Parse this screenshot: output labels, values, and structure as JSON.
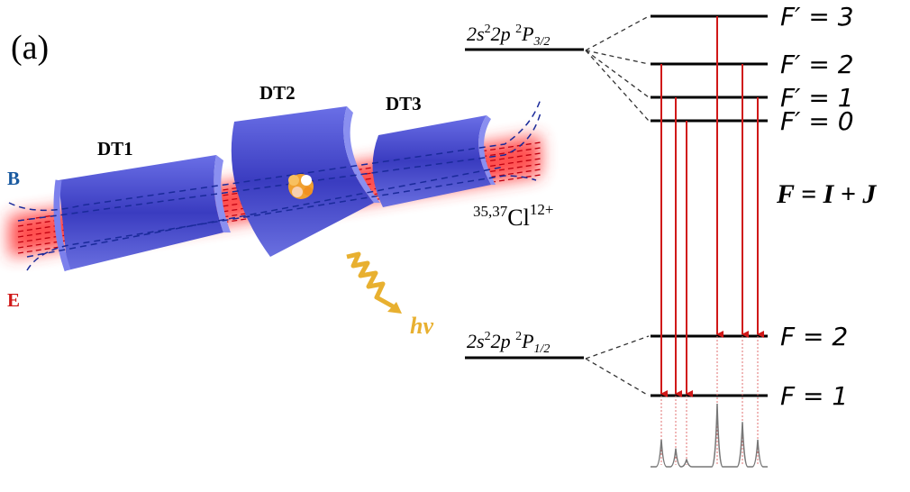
{
  "panel_label": "(a)",
  "drift_tubes": [
    "DT1",
    "DT2",
    "DT3"
  ],
  "field_labels": {
    "B": "B",
    "E": "E"
  },
  "ion_label": {
    "mass": "35,37",
    "element": "Cl",
    "charge": "12+"
  },
  "photon_label": "hν",
  "upper_state": {
    "config": "2s",
    "sup1": "2",
    "mid": "2p ",
    "sup2": "2",
    "term": "P",
    "sub": "3/2"
  },
  "lower_state": {
    "config": "2s",
    "sup1": "2",
    "mid": "2p ",
    "sup2": "2",
    "term": "P",
    "sub": "1/2"
  },
  "upper_levels": [
    {
      "id": "Fp3",
      "label": "F′ = 3"
    },
    {
      "id": "Fp2",
      "label": "F′ = 2"
    },
    {
      "id": "Fp1",
      "label": "F′ = 1"
    },
    {
      "id": "Fp0",
      "label": "F′ = 0"
    }
  ],
  "lower_levels": [
    {
      "id": "F2",
      "label": "F = 2"
    },
    {
      "id": "F1",
      "label": "F = 1"
    }
  ],
  "equation": "F = I + J",
  "transitions": [
    {
      "from": "Fp2",
      "to": "F1",
      "relative_intensity": 0.43
    },
    {
      "from": "Fp1",
      "to": "F1",
      "relative_intensity": 0.29
    },
    {
      "from": "Fp0",
      "to": "F1",
      "relative_intensity": 0.12
    },
    {
      "from": "Fp3",
      "to": "F2",
      "relative_intensity": 1.0
    },
    {
      "from": "Fp2",
      "to": "F2",
      "relative_intensity": 0.71
    },
    {
      "from": "Fp1",
      "to": "F2",
      "relative_intensity": 0.43
    }
  ],
  "colors": {
    "tube": "#5a5fd8",
    "beam": "#ff2020",
    "arrow": "#d01818",
    "photon": "#e8b030",
    "b_label": "#1a5aa0",
    "e_label": "#d01818"
  }
}
